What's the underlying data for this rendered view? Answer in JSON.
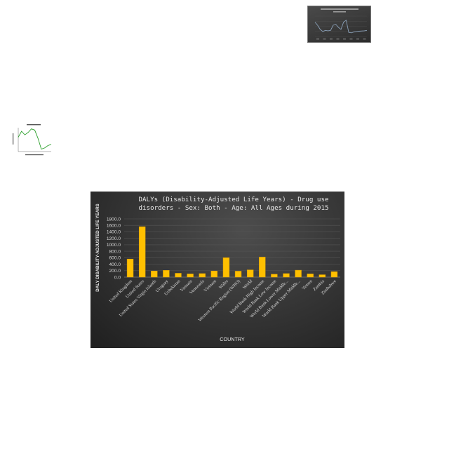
{
  "colors": {
    "bar": "#ffc000",
    "bar_dark": "#d99a00",
    "chart_bg": "#363636",
    "grid": "#555555",
    "text": "#d9d9d9",
    "thumb_line": "#8aa0b8",
    "thumb_green": "#2ca02c"
  },
  "chart_data": [
    {
      "type": "bar",
      "title": "DALYs (Disability-Adjusted Life Years) - Drug use disorders - Sex: Both - Age: All Ages during 2015",
      "title_lines": [
        "DALYs (Disability-Adjusted Life Years) - Drug use",
        "disorders - Sex: Both - Age: All Ages during 2015"
      ],
      "xlabel": "COUNTRY",
      "ylabel": "DALY DISABILITY-ADJUSTED LIFE YEARS",
      "ylim": [
        0,
        1800
      ],
      "yticks": [
        "0.0",
        "200.0",
        "400.0",
        "600.0",
        "800.0",
        "1000.0",
        "1200.0",
        "1400.0",
        "1600.0",
        "1800.0"
      ],
      "grid": true,
      "categories": [
        "United Kingdom",
        "United States",
        "United States Virgin Islands",
        "Uruguay",
        "Uzbekistan",
        "Vanuatu",
        "Venezuela",
        "Vietnam",
        "Wales",
        "Western Pacific Region (WHO)",
        "World",
        "World Bank High Income",
        "World Bank Low Income",
        "World Bank Lower Middle...",
        "World Bank Upper Middle...",
        "Yemen",
        "Zambia",
        "Zimbabwe"
      ],
      "values": [
        560,
        1560,
        190,
        210,
        120,
        100,
        110,
        190,
        600,
        185,
        225,
        620,
        90,
        110,
        215,
        100,
        75,
        170
      ]
    },
    {
      "type": "line",
      "x": [
        0,
        1,
        2,
        3,
        4,
        5,
        6,
        7,
        8,
        9,
        10,
        11,
        12,
        13,
        14,
        15,
        16,
        17,
        18,
        19,
        20
      ],
      "values": [
        70,
        55,
        35,
        25,
        30,
        28,
        30,
        55,
        60,
        45,
        35,
        70,
        80,
        20,
        18,
        22,
        25,
        26,
        27,
        28,
        30
      ],
      "ylim": [
        0,
        100
      ]
    },
    {
      "type": "line",
      "x": [
        0,
        1,
        2,
        3,
        4,
        5,
        6,
        7,
        8,
        9,
        10
      ],
      "values": [
        60,
        85,
        70,
        80,
        95,
        90,
        55,
        10,
        15,
        25,
        30
      ],
      "ylim": [
        0,
        100
      ]
    }
  ]
}
